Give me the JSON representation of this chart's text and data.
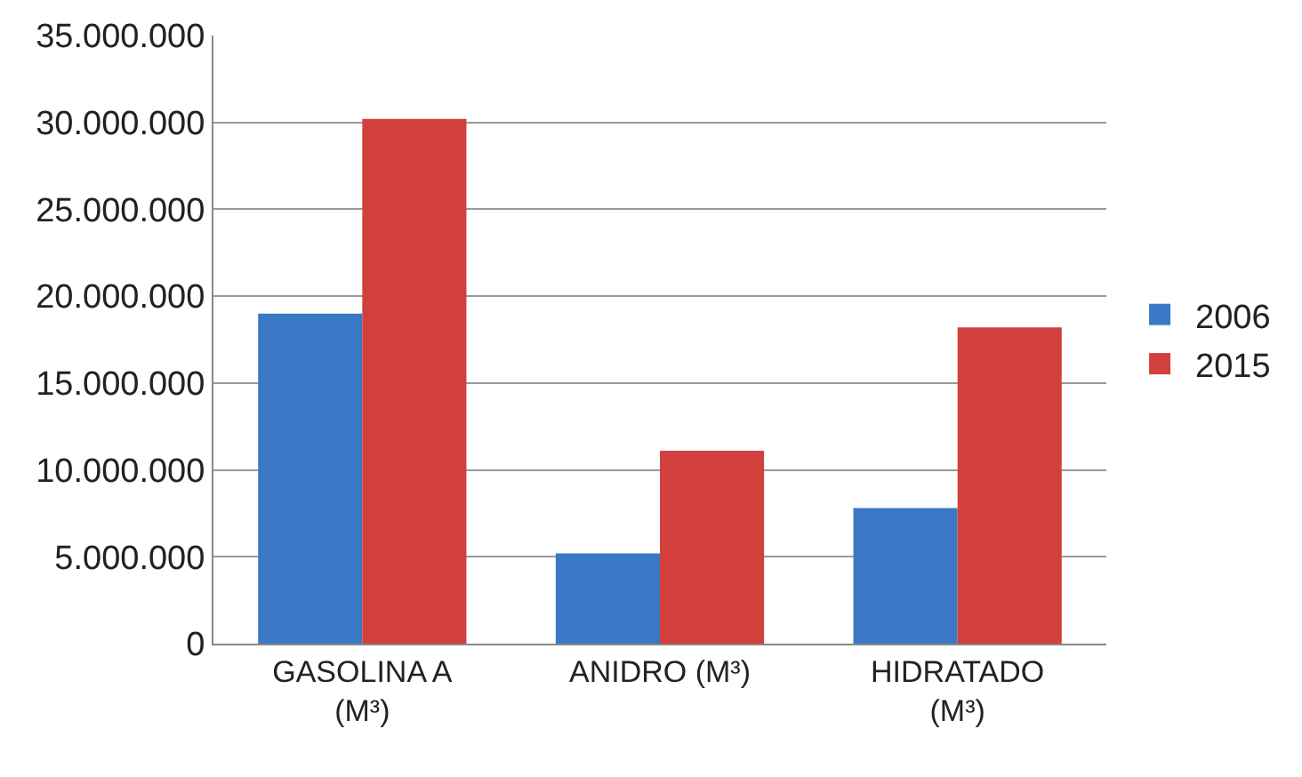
{
  "chart_data": {
    "type": "bar",
    "categories": [
      "GASOLINA A (M³)",
      "ANIDRO (M³)",
      "HIDRATADO (M³)"
    ],
    "series": [
      {
        "name": "2006",
        "color": "#3a78c6",
        "values": [
          19000000,
          5200000,
          7800000
        ]
      },
      {
        "name": "2015",
        "color": "#d2403e",
        "values": [
          30200000,
          11100000,
          18200000
        ]
      }
    ],
    "ylim": [
      0,
      35000000
    ],
    "yticks": [
      0,
      {
        "value": 5000000,
        "label": "5.000.000"
      },
      {
        "value": 10000000,
        "label": "10.000.000"
      },
      {
        "value": 15000000,
        "label": "15.000.000"
      },
      {
        "value": 20000000,
        "label": "20.000.000"
      },
      {
        "value": 25000000,
        "label": "25.000.000"
      },
      {
        "value": 30000000,
        "label": "30.000.000"
      },
      {
        "value": 35000000,
        "label": "35.000.000"
      }
    ],
    "grid": "y",
    "legend": "right"
  }
}
